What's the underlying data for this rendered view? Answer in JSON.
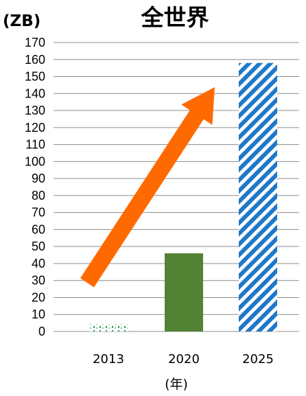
{
  "chart_data": {
    "type": "bar",
    "title": "全世界",
    "ylabel": "(ZB)",
    "xlabel": "(年)",
    "categories": [
      "2013",
      "2020",
      "2025"
    ],
    "values": [
      4.4,
      46,
      158
    ],
    "ylim": [
      0,
      170
    ],
    "yticks": [
      0,
      10,
      20,
      30,
      40,
      50,
      60,
      70,
      80,
      90,
      100,
      110,
      120,
      130,
      140,
      150,
      160,
      170
    ],
    "grid": true,
    "bar_styles": [
      {
        "fill": "dotted",
        "color": "#2e9e5a"
      },
      {
        "fill": "solid",
        "color": "#548235"
      },
      {
        "fill": "diagonal-stripes",
        "color": "#1f78c8"
      }
    ],
    "annotation": {
      "shape": "arrow",
      "color": "#ff6a00",
      "direction": "up-right"
    }
  }
}
